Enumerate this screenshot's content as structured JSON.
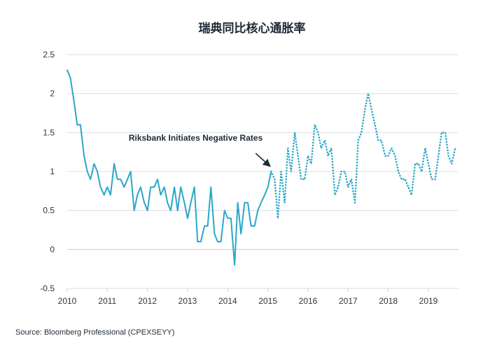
{
  "chart_data": {
    "type": "line",
    "title": "瑞典同比核心通胀率",
    "xlabel": "",
    "ylabel": "",
    "x_ticks": [
      "2010",
      "2011",
      "2012",
      "2013",
      "2014",
      "2015",
      "2016",
      "2017",
      "2018",
      "2019"
    ],
    "y_ticks": [
      "2.5",
      "2",
      "1.5",
      "1",
      "0.5",
      "0",
      "-0.5"
    ],
    "xlim": [
      2010.0,
      2019.75
    ],
    "ylim": [
      -0.5,
      2.5
    ],
    "grid": true,
    "series": [
      {
        "style": "solid",
        "color": "#2aa7c9",
        "points": [
          [
            2010.0,
            2.3
          ],
          [
            2010.08,
            2.2
          ],
          [
            2010.17,
            1.9
          ],
          [
            2010.25,
            1.6
          ],
          [
            2010.33,
            1.6
          ],
          [
            2010.42,
            1.2
          ],
          [
            2010.5,
            1.0
          ],
          [
            2010.58,
            0.9
          ],
          [
            2010.67,
            1.1
          ],
          [
            2010.75,
            1.0
          ],
          [
            2010.83,
            0.8
          ],
          [
            2010.92,
            0.7
          ],
          [
            2011.0,
            0.8
          ],
          [
            2011.08,
            0.7
          ],
          [
            2011.17,
            1.1
          ],
          [
            2011.25,
            0.9
          ],
          [
            2011.33,
            0.9
          ],
          [
            2011.42,
            0.8
          ],
          [
            2011.5,
            0.9
          ],
          [
            2011.58,
            1.0
          ],
          [
            2011.67,
            0.5
          ],
          [
            2011.75,
            0.7
          ],
          [
            2011.83,
            0.8
          ],
          [
            2011.92,
            0.6
          ],
          [
            2012.0,
            0.5
          ],
          [
            2012.08,
            0.8
          ],
          [
            2012.17,
            0.8
          ],
          [
            2012.25,
            0.9
          ],
          [
            2012.33,
            0.7
          ],
          [
            2012.42,
            0.8
          ],
          [
            2012.5,
            0.6
          ],
          [
            2012.58,
            0.5
          ],
          [
            2012.67,
            0.8
          ],
          [
            2012.75,
            0.5
          ],
          [
            2012.83,
            0.8
          ],
          [
            2012.92,
            0.6
          ],
          [
            2013.0,
            0.4
          ],
          [
            2013.08,
            0.6
          ],
          [
            2013.17,
            0.8
          ],
          [
            2013.25,
            0.1
          ],
          [
            2013.33,
            0.1
          ],
          [
            2013.42,
            0.3
          ],
          [
            2013.5,
            0.3
          ],
          [
            2013.58,
            0.8
          ],
          [
            2013.67,
            0.2
          ],
          [
            2013.75,
            0.1
          ],
          [
            2013.83,
            0.1
          ],
          [
            2013.92,
            0.5
          ],
          [
            2014.0,
            0.4
          ],
          [
            2014.08,
            0.4
          ],
          [
            2014.17,
            -0.2
          ],
          [
            2014.25,
            0.6
          ],
          [
            2014.33,
            0.2
          ],
          [
            2014.42,
            0.6
          ],
          [
            2014.5,
            0.6
          ],
          [
            2014.58,
            0.3
          ],
          [
            2014.67,
            0.3
          ],
          [
            2014.75,
            0.5
          ],
          [
            2014.83,
            0.6
          ],
          [
            2014.92,
            0.7
          ],
          [
            2015.0,
            0.8
          ],
          [
            2015.08,
            1.0
          ]
        ]
      },
      {
        "style": "dotted",
        "color": "#2aa7c9",
        "points": [
          [
            2015.08,
            1.0
          ],
          [
            2015.17,
            0.9
          ],
          [
            2015.25,
            0.4
          ],
          [
            2015.33,
            1.0
          ],
          [
            2015.42,
            0.6
          ],
          [
            2015.5,
            1.3
          ],
          [
            2015.58,
            1.0
          ],
          [
            2015.67,
            1.5
          ],
          [
            2015.75,
            1.2
          ],
          [
            2015.83,
            0.9
          ],
          [
            2015.92,
            0.9
          ],
          [
            2016.0,
            1.2
          ],
          [
            2016.08,
            1.1
          ],
          [
            2016.17,
            1.6
          ],
          [
            2016.25,
            1.5
          ],
          [
            2016.33,
            1.3
          ],
          [
            2016.42,
            1.4
          ],
          [
            2016.5,
            1.2
          ],
          [
            2016.58,
            1.3
          ],
          [
            2016.67,
            0.7
          ],
          [
            2016.75,
            0.8
          ],
          [
            2016.83,
            1.0
          ],
          [
            2016.92,
            1.0
          ],
          [
            2017.0,
            0.8
          ],
          [
            2017.08,
            0.9
          ],
          [
            2017.17,
            0.6
          ],
          [
            2017.25,
            1.4
          ],
          [
            2017.33,
            1.5
          ],
          [
            2017.42,
            1.8
          ],
          [
            2017.5,
            2.0
          ],
          [
            2017.58,
            1.8
          ],
          [
            2017.67,
            1.6
          ],
          [
            2017.75,
            1.4
          ],
          [
            2017.83,
            1.4
          ],
          [
            2017.92,
            1.2
          ],
          [
            2018.0,
            1.2
          ],
          [
            2018.08,
            1.3
          ],
          [
            2018.17,
            1.2
          ],
          [
            2018.25,
            1.0
          ],
          [
            2018.33,
            0.9
          ],
          [
            2018.42,
            0.9
          ],
          [
            2018.5,
            0.8
          ],
          [
            2018.58,
            0.7
          ],
          [
            2018.67,
            1.1
          ],
          [
            2018.75,
            1.1
          ],
          [
            2018.83,
            1.0
          ],
          [
            2018.92,
            1.3
          ],
          [
            2019.0,
            1.1
          ],
          [
            2019.08,
            0.9
          ],
          [
            2019.17,
            0.9
          ],
          [
            2019.25,
            1.2
          ],
          [
            2019.33,
            1.5
          ],
          [
            2019.42,
            1.5
          ],
          [
            2019.5,
            1.2
          ],
          [
            2019.58,
            1.1
          ],
          [
            2019.67,
            1.3
          ]
        ]
      }
    ],
    "annotations": [
      {
        "text": "Riksbank Initiates Negative Rates",
        "x": 2015.08,
        "y": 1.0
      }
    ],
    "source": "Source: Bloomberg Professional (CPEXSEYY)"
  }
}
